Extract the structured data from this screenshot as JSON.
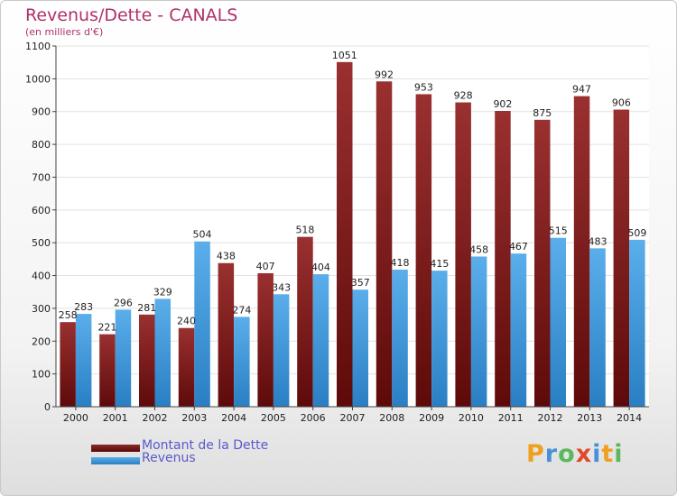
{
  "title": "Revenus/Dette - CANALS",
  "subtitle": "(en milliers d'€)",
  "brand": {
    "name": "Proxiti",
    "letters": [
      {
        "ch": "P",
        "color": "#f0a020"
      },
      {
        "ch": "r",
        "color": "#4a90d9"
      },
      {
        "ch": "o",
        "color": "#5cb85c"
      },
      {
        "ch": "x",
        "color": "#e04a2a"
      },
      {
        "ch": "i",
        "color": "#4a90d9"
      },
      {
        "ch": "t",
        "color": "#f0a020"
      },
      {
        "ch": "i",
        "color": "#5cb85c"
      }
    ]
  },
  "chart_data": {
    "type": "bar",
    "categories": [
      "2000",
      "2001",
      "2002",
      "2003",
      "2004",
      "2005",
      "2006",
      "2007",
      "2008",
      "2009",
      "2010",
      "2011",
      "2012",
      "2013",
      "2014"
    ],
    "series": [
      {
        "name": "Montant de la Dette",
        "color": "#8b1c1c",
        "values": [
          258,
          221,
          281,
          240,
          438,
          407,
          518,
          1051,
          992,
          953,
          928,
          902,
          875,
          947,
          906
        ]
      },
      {
        "name": "Revenus",
        "color": "#3f9de0",
        "values": [
          283,
          296,
          329,
          504,
          274,
          343,
          404,
          357,
          418,
          415,
          458,
          467,
          515,
          483,
          509
        ]
      }
    ],
    "ylim": [
      0,
      1100
    ],
    "yticks": [
      0,
      100,
      200,
      300,
      400,
      500,
      600,
      700,
      800,
      900,
      1000,
      1100
    ],
    "grid": true,
    "legend_position": "bottom-left"
  }
}
